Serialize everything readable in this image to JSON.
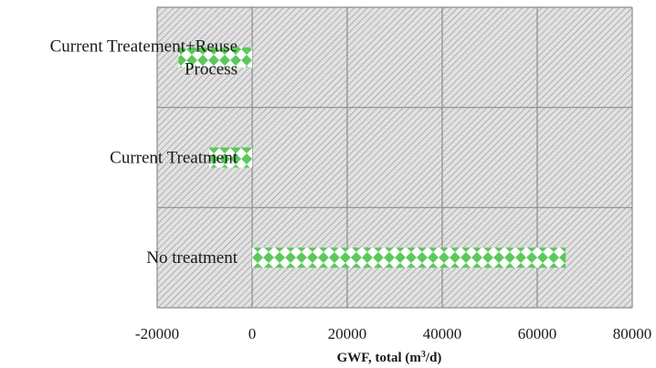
{
  "chart_data": {
    "type": "bar",
    "orientation": "horizontal",
    "categories": [
      "Current Treatement+Reuse Process",
      "Current Treatment",
      "No treatment"
    ],
    "category_label_lines": [
      [
        "Current Treatement+Reuse",
        "Process"
      ],
      [
        "Current Treatment"
      ],
      [
        "No treatment"
      ]
    ],
    "values": [
      -15500,
      -9000,
      66000
    ],
    "xlim": [
      -20000,
      80000
    ],
    "xticks": [
      -20000,
      0,
      20000,
      40000,
      60000,
      80000
    ],
    "xtick_labels": [
      "-20000",
      "0",
      "20000",
      "40000",
      "60000",
      "80000"
    ],
    "xlabel": {
      "main": "GWF, total (m",
      "sup": "3",
      "tail": "/d)"
    },
    "grid": true,
    "legend": "none",
    "colors": {
      "bar_fill": "#5cc85c",
      "bar_pattern_bg": "#ffffff",
      "plot_hatch": "#9a9a9a",
      "plot_bg": "#e2e2e2",
      "grid": "#8c8c8c"
    }
  }
}
